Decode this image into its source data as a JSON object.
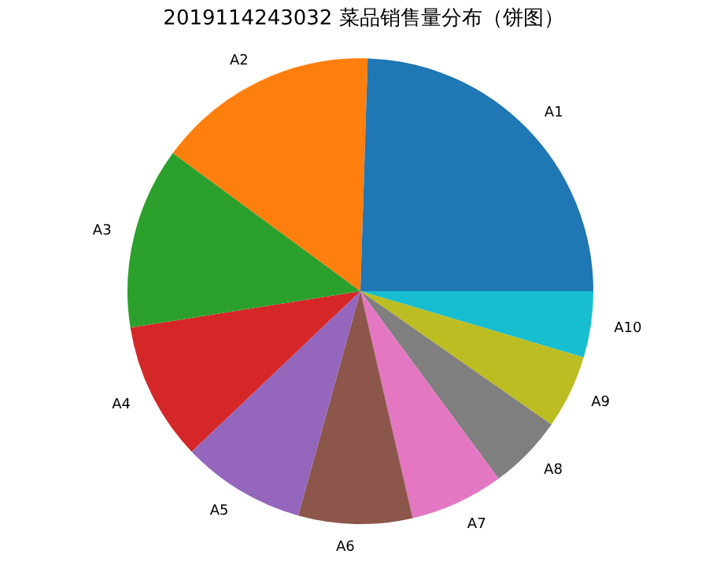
{
  "chart_data": {
    "type": "pie",
    "title": "2019114243032 菜品销售量分布（饼图）",
    "categories": [
      "A1",
      "A2",
      "A3",
      "A4",
      "A5",
      "A6",
      "A7",
      "A8",
      "A9",
      "A10"
    ],
    "values": [
      24.5,
      15.4,
      12.6,
      9.6,
      8.6,
      7.9,
      6.5,
      5.2,
      5.1,
      4.6
    ],
    "colors": [
      "#1f77b4",
      "#ff7f0e",
      "#2ca02c",
      "#d62728",
      "#9467bd",
      "#8c564b",
      "#e377c2",
      "#7f7f7f",
      "#bcbd22",
      "#17becf"
    ]
  }
}
